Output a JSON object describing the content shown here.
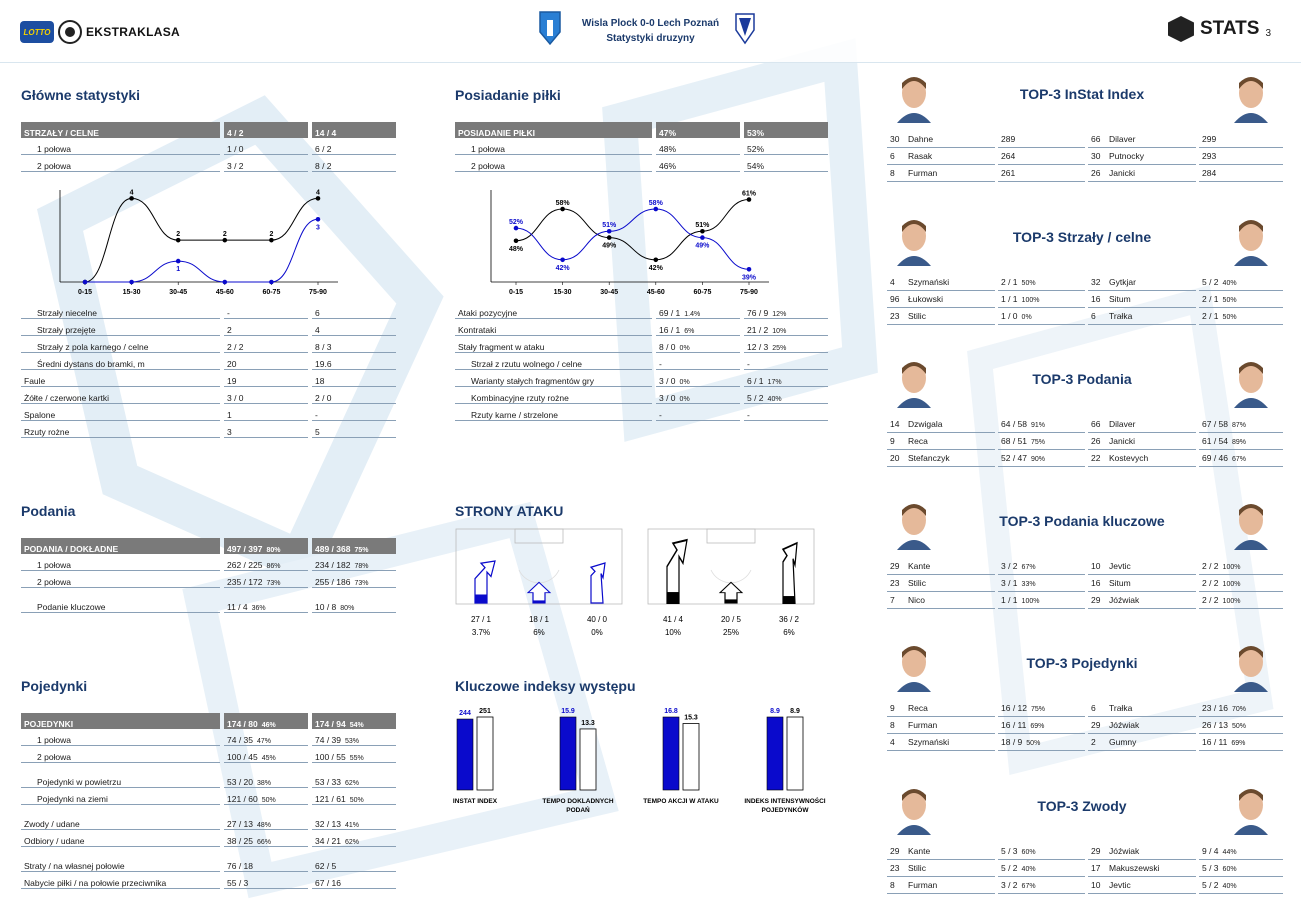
{
  "header": {
    "league_brand": "LOTTO",
    "league": "EKSTRAKLASA",
    "match": "Wisla Plock 0-0  Lech Poznań",
    "subtitle": "Statystyki druzyny",
    "stats_brand": "STATS",
    "page": "3"
  },
  "main_stats": {
    "title": "Główne statystyki",
    "head": [
      "STRZAŁY / CELNE",
      "4 / 2",
      "14 / 4"
    ],
    "halves": [
      [
        "1 połowa",
        "1 / 0",
        "6 / 2"
      ],
      [
        "2 połowa",
        "3 / 2",
        "8 / 2"
      ]
    ],
    "rows": [
      [
        "Strzały niecelne",
        "-",
        "6",
        true
      ],
      [
        "Strzały przejęte",
        "2",
        "4",
        true
      ],
      [
        "Strzały z pola karnego / celne",
        "2 / 2",
        "8 / 3",
        true
      ],
      [
        "Średni dystans do bramki, m",
        "20",
        "19.6",
        true
      ],
      [
        "Faule",
        "19",
        "18",
        false
      ],
      [
        "Żółte / czerwone kartki",
        "3 / 0",
        "2 / 0",
        false
      ],
      [
        "Spalone",
        "1",
        "-",
        false
      ],
      [
        "Rzuty rożne",
        "3",
        "5",
        false
      ]
    ]
  },
  "possession": {
    "title": "Posiadanie piłki",
    "head": [
      "POSIADANIE PIŁKI",
      "47%",
      "53%"
    ],
    "halves": [
      [
        "1 połowa",
        "48%",
        "52%"
      ],
      [
        "2 połowa",
        "46%",
        "54%"
      ]
    ],
    "rows": [
      [
        "Ataki pozycyjne",
        "69 / 1",
        "1.4%",
        "76 / 9",
        "12%",
        false
      ],
      [
        "Kontrataki",
        "16 / 1",
        "6%",
        "21 / 2",
        "10%",
        false
      ],
      [
        "Stały fragment w ataku",
        "8 / 0",
        "0%",
        "12 / 3",
        "25%",
        false
      ],
      [
        "Strzał z rzutu wolnego / celne",
        "-",
        "",
        "-",
        "",
        true
      ],
      [
        "Warianty stałych fragmentów gry",
        "3 / 0",
        "0%",
        "6 / 1",
        "17%",
        true
      ],
      [
        "Kombinacyjne rzuty rożne",
        "3 / 0",
        "0%",
        "5 / 2",
        "40%",
        true
      ],
      [
        "Rzuty karne / strzelone",
        "-",
        "",
        "-",
        "",
        true
      ]
    ]
  },
  "chart_data": [
    {
      "type": "line",
      "categories": [
        "0-15",
        "15-30",
        "30-45",
        "45-60",
        "60-75",
        "75-90"
      ],
      "series": [
        {
          "values": [
            0,
            4,
            2,
            2,
            2,
            4
          ],
          "color": "#000000"
        },
        {
          "values": [
            0,
            0,
            1,
            0,
            0,
            3
          ],
          "color": "#0a0acc"
        }
      ],
      "labels": [
        [
          "",
          "4",
          "2",
          "2",
          "2",
          "4"
        ],
        [
          "",
          "",
          "1",
          "",
          "",
          "3"
        ]
      ],
      "ylim": [
        0,
        4.4
      ]
    },
    {
      "type": "line",
      "categories": [
        "0-15",
        "15-30",
        "30-45",
        "45-60",
        "60-75",
        "75-90"
      ],
      "series": [
        {
          "values": [
            48,
            58,
            49,
            42,
            51,
            61
          ],
          "color": "#000000"
        },
        {
          "values": [
            52,
            42,
            51,
            58,
            49,
            39
          ],
          "color": "#0a0acc"
        }
      ],
      "labels": [
        [
          "48%",
          "58%",
          "49%",
          "42%",
          "51%",
          "61%"
        ],
        [
          "52%",
          "42%",
          "51%",
          "58%",
          "49%",
          "39%"
        ]
      ],
      "ylim": [
        35,
        64
      ]
    },
    {
      "type": "bar",
      "title": "Kluczowe indeksy występu",
      "categories": [
        "INSTAT INDEX",
        "TEMPO DOKLADNYCH PODAŃ",
        "TEMPO AKCJI W ATAKU",
        "INDEKS INTENSYWNOŚCI POJEDYNKÓW"
      ],
      "series": [
        {
          "values": [
            244,
            15.9,
            16.8,
            8.9
          ],
          "color": "#0a0acc"
        },
        {
          "values": [
            251,
            13.3,
            15.3,
            8.9
          ],
          "color": "#ffffff"
        }
      ],
      "labels": [
        [
          "244",
          "15.9",
          "16.8",
          "8.9"
        ],
        [
          "251",
          "13.3",
          "15.3",
          "8.9"
        ]
      ]
    }
  ],
  "passes": {
    "title": "Podania",
    "head": [
      "PODANIA / DOKŁADNE",
      "497 / 397",
      "80%",
      "489 / 368",
      "75%"
    ],
    "rows": [
      [
        "1 połowa",
        "262 / 225",
        "86%",
        "234 / 182",
        "78%",
        true
      ],
      [
        "2 połowa",
        "235 / 172",
        "73%",
        "255 / 186",
        "73%",
        true
      ],
      [
        "",
        "",
        "",
        "",
        "",
        "space"
      ],
      [
        "Podanie kluczowe",
        "11 / 4",
        "36%",
        "10 / 8",
        "80%",
        true
      ]
    ]
  },
  "duels": {
    "title": "Pojedynki",
    "head": [
      "POJEDYNKI",
      "174 / 80",
      "46%",
      "174 / 94",
      "54%"
    ],
    "rows": [
      [
        "1 połowa",
        "74 / 35",
        "47%",
        "74 / 39",
        "53%",
        true
      ],
      [
        "2 połowa",
        "100 / 45",
        "45%",
        "100 / 55",
        "55%",
        true
      ],
      [
        "",
        "",
        "",
        "",
        "",
        "space"
      ],
      [
        "Pojedynki w powietrzu",
        "53 / 20",
        "38%",
        "53 / 33",
        "62%",
        true
      ],
      [
        "Pojedynki na ziemi",
        "121 / 60",
        "50%",
        "121 / 61",
        "50%",
        true
      ],
      [
        "",
        "",
        "",
        "",
        "",
        "space"
      ],
      [
        "Zwody / udane",
        "27 / 13",
        "48%",
        "32 / 13",
        "41%",
        false
      ],
      [
        "Odbiory / udane",
        "38 / 25",
        "66%",
        "34 / 21",
        "62%",
        false
      ],
      [
        "",
        "",
        "",
        "",
        "",
        "space"
      ],
      [
        "Straty / na własnej połowie",
        "76 / 18",
        "",
        "62 / 5",
        "",
        false
      ],
      [
        "Nabycie piłki / na połowie przeciwnika",
        "55 / 3",
        "",
        "67 / 16",
        "",
        false
      ]
    ]
  },
  "attack_sides": {
    "title": "STRONY ATAKU",
    "home": [
      [
        "27 / 1",
        "3.7%",
        0.35
      ],
      [
        "18 / 1",
        "6%",
        0.25
      ],
      [
        "40 / 0",
        "0%",
        0
      ]
    ],
    "away": [
      [
        "41 / 4",
        "10%",
        0.3
      ],
      [
        "20 / 5",
        "25%",
        0.35
      ],
      [
        "36 / 2",
        "6%",
        0.2
      ]
    ]
  },
  "indices": {
    "title": "Kluczowe indeksy występu"
  },
  "tops": [
    {
      "title": "TOP-3 InStat Index",
      "rows": [
        [
          "30",
          "Dahne",
          "289",
          "",
          "66",
          "Dilaver",
          "299",
          ""
        ],
        [
          "6",
          "Rasak",
          "264",
          "",
          "30",
          "Putnocky",
          "293",
          ""
        ],
        [
          "8",
          "Furman",
          "261",
          "",
          "26",
          "Janicki",
          "284",
          ""
        ]
      ]
    },
    {
      "title": "TOP-3 Strzały / celne",
      "rows": [
        [
          "4",
          "Szymański",
          "2 / 1",
          "50%",
          "32",
          "Gytkjar",
          "5 / 2",
          "40%"
        ],
        [
          "96",
          "Łukowski",
          "1 / 1",
          "100%",
          "16",
          "Situm",
          "2 / 1",
          "50%"
        ],
        [
          "23",
          "Stilic",
          "1 / 0",
          "0%",
          "6",
          "Trałka",
          "2 / 1",
          "50%"
        ]
      ]
    },
    {
      "title": "TOP-3 Podania",
      "rows": [
        [
          "14",
          "Dzwigala",
          "64 / 58",
          "91%",
          "66",
          "Dilaver",
          "67 / 58",
          "87%"
        ],
        [
          "9",
          "Reca",
          "68 / 51",
          "75%",
          "26",
          "Janicki",
          "61 / 54",
          "89%"
        ],
        [
          "20",
          "Stefanczyk",
          "52 / 47",
          "90%",
          "22",
          "Kostevych",
          "69 / 46",
          "67%"
        ]
      ]
    },
    {
      "title": "TOP-3 Podania kluczowe",
      "rows": [
        [
          "29",
          "Kante",
          "3 / 2",
          "67%",
          "10",
          "Jevtic",
          "2 / 2",
          "100%"
        ],
        [
          "23",
          "Stilic",
          "3 / 1",
          "33%",
          "16",
          "Situm",
          "2 / 2",
          "100%"
        ],
        [
          "7",
          "Nico",
          "1 / 1",
          "100%",
          "29",
          "Jóźwiak",
          "2 / 2",
          "100%"
        ]
      ]
    },
    {
      "title": "TOP-3 Pojedynki",
      "rows": [
        [
          "9",
          "Reca",
          "16 / 12",
          "75%",
          "6",
          "Trałka",
          "23 / 16",
          "70%"
        ],
        [
          "8",
          "Furman",
          "16 / 11",
          "69%",
          "29",
          "Jóźwiak",
          "26 / 13",
          "50%"
        ],
        [
          "4",
          "Szymański",
          "18 / 9",
          "50%",
          "2",
          "Gumny",
          "16 / 11",
          "69%"
        ]
      ]
    },
    {
      "title": "TOP-3 Zwody",
      "rows": [
        [
          "29",
          "Kante",
          "5 / 3",
          "60%",
          "29",
          "Jóźwiak",
          "9 / 4",
          "44%"
        ],
        [
          "23",
          "Stilic",
          "5 / 2",
          "40%",
          "17",
          "Makuszewski",
          "5 / 3",
          "60%"
        ],
        [
          "8",
          "Furman",
          "3 / 2",
          "67%",
          "10",
          "Jevtic",
          "5 / 2",
          "40%"
        ]
      ]
    }
  ],
  "colors": {
    "accent": "#1b3a6b",
    "home": "#0a0acc",
    "away": "#000000",
    "header_bg": "#7a7a7a"
  }
}
